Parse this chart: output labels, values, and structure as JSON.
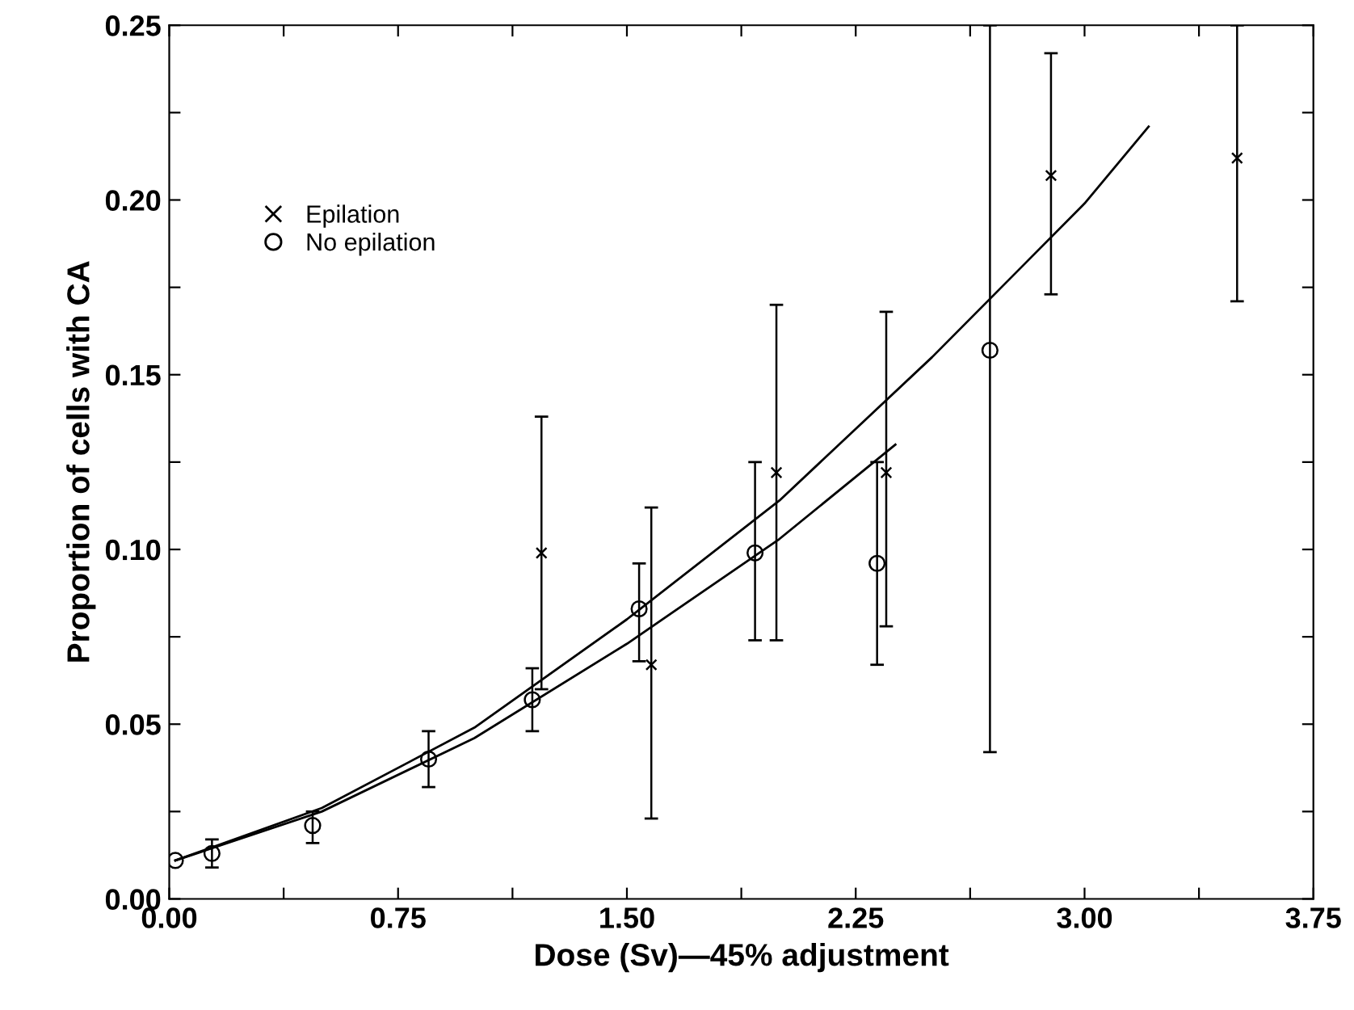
{
  "chart_data": {
    "type": "scatter",
    "xlabel": "Dose (Sv)—45% adjustment",
    "ylabel": "Proportion of cells with CA",
    "xlim": [
      0,
      3.75
    ],
    "ylim": [
      0,
      0.25
    ],
    "xticks": [
      {
        "value": 0,
        "label": "0.00"
      },
      {
        "value": 0.375,
        "label": null
      },
      {
        "value": 0.75,
        "label": "0.75"
      },
      {
        "value": 1.125,
        "label": null
      },
      {
        "value": 1.5,
        "label": "1.50"
      },
      {
        "value": 1.875,
        "label": null
      },
      {
        "value": 2.25,
        "label": "2.25"
      },
      {
        "value": 2.625,
        "label": null
      },
      {
        "value": 3.0,
        "label": "3.00"
      },
      {
        "value": 3.375,
        "label": null
      },
      {
        "value": 3.75,
        "label": "3.75"
      }
    ],
    "yticks": [
      {
        "value": 0,
        "label": "0.00"
      },
      {
        "value": 0.025,
        "label": null
      },
      {
        "value": 0.05,
        "label": "0.05"
      },
      {
        "value": 0.075,
        "label": null
      },
      {
        "value": 0.1,
        "label": "0.10"
      },
      {
        "value": 0.125,
        "label": null
      },
      {
        "value": 0.15,
        "label": "0.15"
      },
      {
        "value": 0.175,
        "label": null
      },
      {
        "value": 0.2,
        "label": "0.20"
      },
      {
        "value": 0.225,
        "label": null
      },
      {
        "value": 0.25,
        "label": "0.25"
      }
    ],
    "grid": false,
    "legend": "top left",
    "series": [
      {
        "name": "Epilation",
        "color": "#000000",
        "marker": "cross",
        "x": [
          1.22,
          1.58,
          1.99,
          2.35,
          2.89,
          3.5
        ],
        "values": [
          0.099,
          0.067,
          0.122,
          0.122,
          0.207,
          0.212
        ],
        "errors": [
          [
            0.06,
            0.138
          ],
          [
            0.023,
            0.112
          ],
          [
            0.074,
            0.17
          ],
          [
            0.078,
            0.168
          ],
          [
            0.173,
            0.242
          ],
          [
            0.171,
            0.25
          ]
        ]
      },
      {
        "name": "No epilation",
        "color": "#000000",
        "marker": "circle",
        "x": [
          0.02,
          0.14,
          0.47,
          0.85,
          1.19,
          1.54,
          1.92,
          2.32,
          2.69
        ],
        "values": [
          0.011,
          0.013,
          0.021,
          0.04,
          0.057,
          0.083,
          0.099,
          0.096,
          0.157
        ],
        "errors": [
          null,
          [
            0.009,
            0.017
          ],
          [
            0.016,
            0.025
          ],
          [
            0.032,
            0.048
          ],
          [
            0.048,
            0.066
          ],
          [
            0.068,
            0.096
          ],
          [
            0.074,
            0.125
          ],
          [
            0.067,
            0.125
          ],
          [
            0.042,
            0.25
          ]
        ]
      },
      {
        "color": "#000000",
        "type": "line",
        "marker": "none",
        "x": [
          0.02,
          0.5,
          1.0,
          1.5,
          2.0,
          2.5,
          3.0,
          3.21
        ],
        "values": [
          0.011,
          0.026,
          0.049,
          0.08,
          0.114,
          0.155,
          0.199,
          0.221
        ]
      },
      {
        "color": "#000000",
        "type": "line",
        "marker": "none",
        "x": [
          0.02,
          0.5,
          1.0,
          1.5,
          2.0,
          2.38
        ],
        "values": [
          0.011,
          0.025,
          0.046,
          0.073,
          0.103,
          0.13
        ]
      }
    ]
  }
}
